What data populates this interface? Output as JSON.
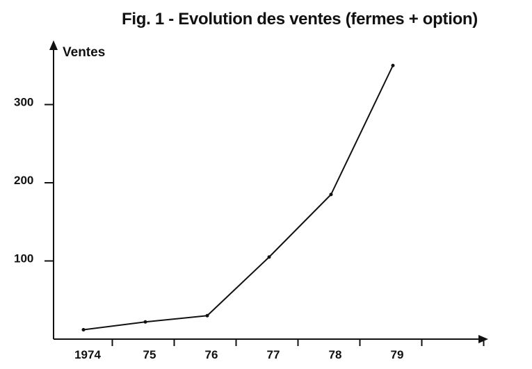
{
  "chart_data": {
    "type": "line",
    "title": "Fig. 1 - Evolution des ventes (fermes + option)",
    "xlabel": "",
    "ylabel": "Ventes",
    "x_tick_labels": [
      "1974",
      "75",
      "76",
      "77",
      "78",
      "79"
    ],
    "y_ticks": [
      100,
      200,
      300
    ],
    "ylim": [
      0,
      360
    ],
    "grid": false,
    "legend": "none",
    "line_color": "#111111",
    "series": [
      {
        "x": [
          1974,
          1975,
          1976,
          1977,
          1978,
          1979
        ],
        "values": [
          12,
          22,
          30,
          105,
          185,
          350
        ]
      }
    ]
  }
}
